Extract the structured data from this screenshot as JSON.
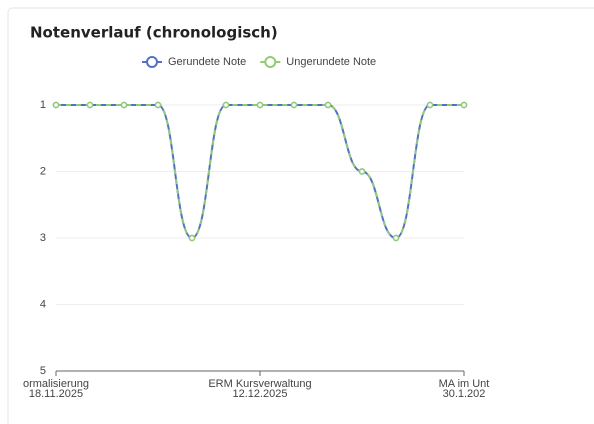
{
  "chart_data": {
    "type": "line",
    "title": "Notenverlauf (chronologisch)",
    "categories": [
      [
        "ormalisierung",
        "18.11.2025"
      ],
      null,
      null,
      null,
      null,
      null,
      [
        "ERM Kursverwaltung",
        "12.12.2025"
      ],
      null,
      null,
      null,
      null,
      null,
      [
        "MA im Unt",
        "30.1.202"
      ]
    ],
    "series": [
      {
        "name": "Gerundete Note",
        "color": "#5470c6",
        "values": [
          1,
          1,
          1,
          1,
          3,
          1,
          1,
          1,
          1,
          2,
          3,
          1,
          1
        ]
      },
      {
        "name": "Ungerundete Note",
        "color": "#91cc75",
        "values": [
          1,
          1,
          1,
          1,
          3,
          1,
          1,
          1,
          1,
          2,
          3,
          1,
          1
        ]
      }
    ],
    "ylim": [
      1,
      5
    ],
    "yticks": [
      1,
      2,
      3,
      4,
      5
    ],
    "y_inverted": true,
    "grid": true,
    "smooth": true,
    "legend": "top"
  }
}
